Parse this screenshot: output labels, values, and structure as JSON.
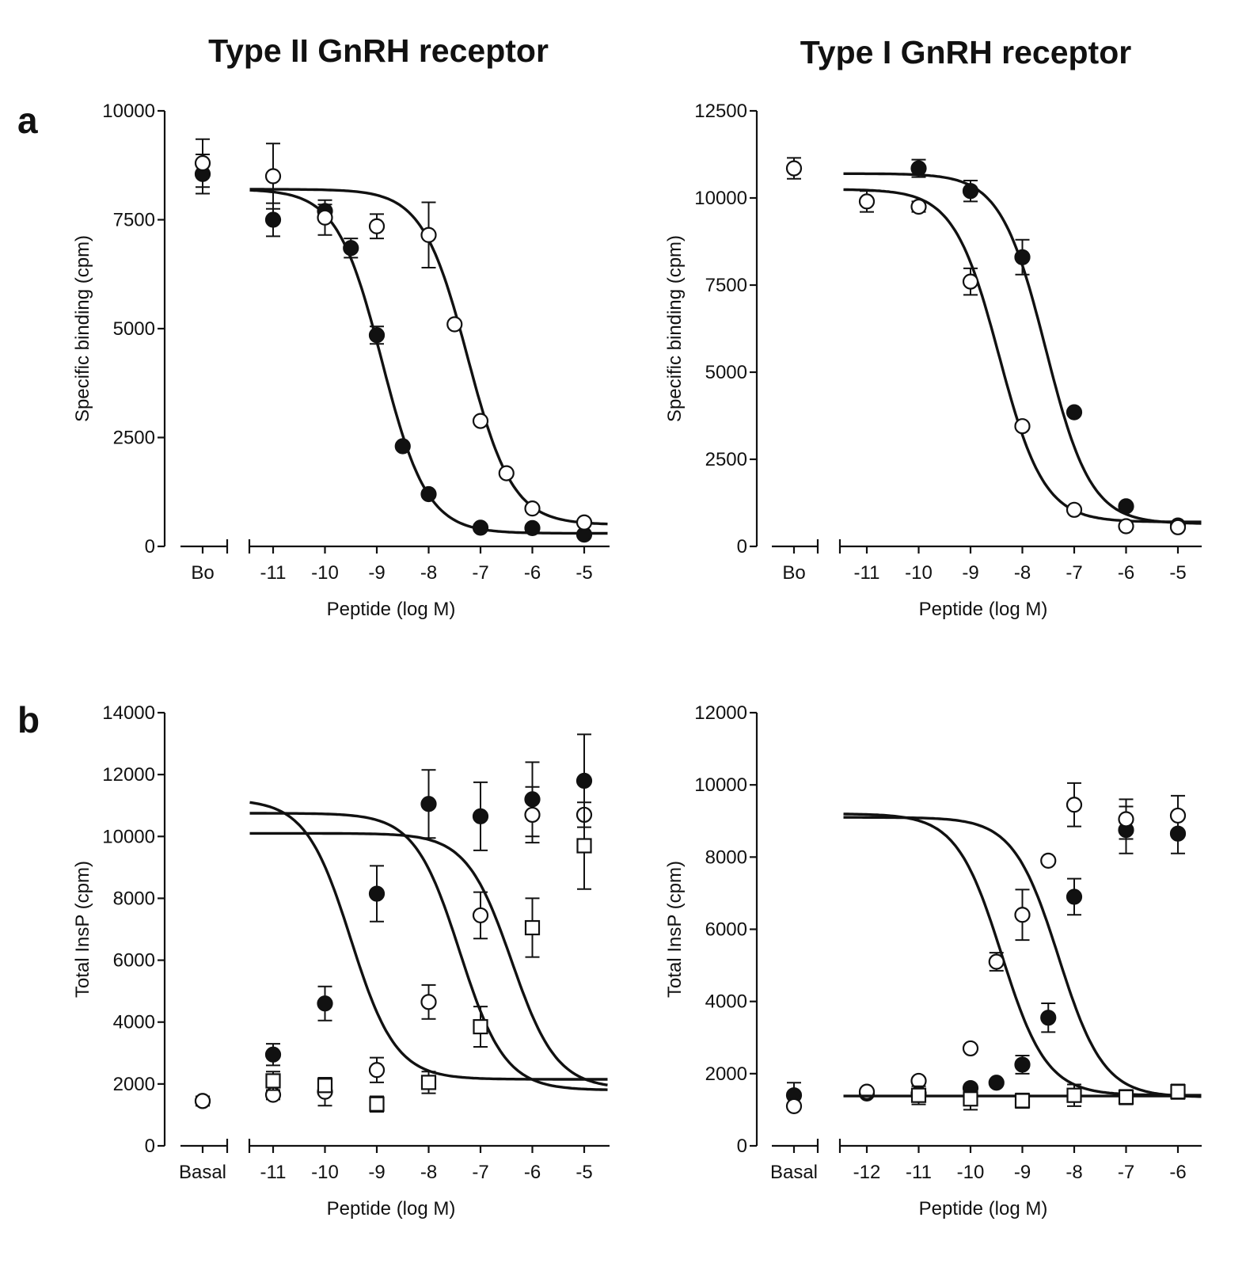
{
  "figure": {
    "column_titles": [
      "Type II GnRH receptor",
      "Type I GnRH receptor"
    ],
    "panel_labels": [
      "a",
      "b"
    ]
  },
  "colors": {
    "ink": "#111111",
    "background": "#ffffff"
  },
  "chart_data": [
    {
      "id": "a-typeII",
      "type": "scatter",
      "title": "Type II GnRH receptor",
      "panel": "a",
      "xlabel": "Peptide (log M)",
      "ylabel": "Specific binding (cpm)",
      "ylim": [
        0,
        10000
      ],
      "yticks": [
        0,
        2500,
        5000,
        7500,
        10000
      ],
      "ytick_labels": [
        "0",
        "2500",
        "5000",
        "7500",
        "10000"
      ],
      "xlim": [
        -11.5,
        -4.5
      ],
      "xticks": [
        -11,
        -10,
        -9,
        -8,
        -7,
        -6,
        -5
      ],
      "xtick_labels": [
        "-11",
        "-10",
        "-9",
        "-8",
        "-7",
        "-6",
        "-5"
      ],
      "baseline_label": "Bo",
      "series": [
        {
          "name": "filled-circle",
          "marker": "filled-circle",
          "baseline": {
            "y": 8550,
            "err": 450
          },
          "x": [
            -11,
            -10,
            -9.5,
            -9,
            -8.5,
            -8,
            -7,
            -6,
            -5
          ],
          "y": [
            7500,
            7700,
            6850,
            4850,
            2300,
            1200,
            430,
            420,
            270
          ],
          "err": [
            380,
            150,
            220,
            200,
            0,
            0,
            0,
            0,
            0
          ],
          "fit": {
            "top": 8200,
            "bottom": 300,
            "logEC50": -8.9,
            "hill": 1.0
          }
        },
        {
          "name": "open-circle",
          "marker": "open-circle",
          "baseline": {
            "y": 8800,
            "err": 550
          },
          "x": [
            -11,
            -10,
            -9,
            -8,
            -7.5,
            -7,
            -6.5,
            -6,
            -5
          ],
          "y": [
            8500,
            7550,
            7350,
            7150,
            5100,
            2880,
            1680,
            870,
            550
          ],
          "err": [
            750,
            400,
            280,
            750,
            0,
            0,
            0,
            0,
            0
          ],
          "fit": {
            "top": 8200,
            "bottom": 500,
            "logEC50": -7.25,
            "hill": 1.0
          }
        }
      ]
    },
    {
      "id": "a-typeI",
      "type": "scatter",
      "title": "Type I GnRH receptor",
      "panel": "a",
      "xlabel": "Peptide (log M)",
      "ylabel": "Specific binding (cpm)",
      "ylim": [
        0,
        12500
      ],
      "yticks": [
        0,
        2500,
        5000,
        7500,
        10000,
        12500
      ],
      "ytick_labels": [
        "0",
        "2500",
        "5000",
        "7500",
        "10000",
        "12500"
      ],
      "xlim": [
        -11.5,
        -4.5
      ],
      "xticks": [
        -11,
        -10,
        -9,
        -8,
        -7,
        -6,
        -5
      ],
      "xtick_labels": [
        "-11",
        "-10",
        "-9",
        "-8",
        "-7",
        "-6",
        "-5"
      ],
      "baseline_label": "Bo",
      "series": [
        {
          "name": "filled-circle",
          "marker": "filled-circle",
          "baseline": null,
          "x": [
            -10,
            -9,
            -8,
            -7,
            -6,
            -5
          ],
          "y": [
            10850,
            10200,
            8300,
            3850,
            1150,
            600
          ],
          "err": [
            250,
            300,
            500,
            0,
            0,
            0
          ],
          "fit": {
            "top": 10700,
            "bottom": 650,
            "logEC50": -7.55,
            "hill": 1.0
          }
        },
        {
          "name": "open-circle",
          "marker": "open-circle",
          "baseline": {
            "y": 10850,
            "err": 300
          },
          "x": [
            -11,
            -10,
            -9,
            -8,
            -7,
            -6,
            -5
          ],
          "y": [
            9900,
            9750,
            7600,
            3450,
            1050,
            580,
            550
          ],
          "err": [
            300,
            150,
            380,
            0,
            0,
            0,
            0
          ],
          "fit": {
            "top": 10250,
            "bottom": 700,
            "logEC50": -8.45,
            "hill": 1.0
          }
        }
      ]
    },
    {
      "id": "b-typeII",
      "type": "scatter",
      "title": "Type II GnRH receptor",
      "panel": "b",
      "xlabel": "Peptide (log M)",
      "ylabel": "Total InsP (cpm)",
      "ylim": [
        0,
        14000
      ],
      "yticks": [
        0,
        2000,
        4000,
        6000,
        8000,
        10000,
        12000,
        14000
      ],
      "ytick_labels": [
        "0",
        "2000",
        "4000",
        "6000",
        "8000",
        "10000",
        "12000",
        "14000"
      ],
      "xlim": [
        -11.5,
        -4.5
      ],
      "xticks": [
        -11,
        -10,
        -9,
        -8,
        -7,
        -6,
        -5
      ],
      "xtick_labels": [
        "-11",
        "-10",
        "-9",
        "-8",
        "-7",
        "-6",
        "-5"
      ],
      "baseline_label": "Basal",
      "series": [
        {
          "name": "filled-circle",
          "marker": "filled-circle",
          "baseline": {
            "y": 1450,
            "err": 150
          },
          "x": [
            -11,
            -10,
            -9,
            -8,
            -7,
            -6,
            -5
          ],
          "y": [
            2950,
            4600,
            8150,
            11050,
            10650,
            11200,
            11800
          ],
          "err": [
            350,
            550,
            900,
            1100,
            1100,
            1200,
            1500
          ],
          "fit": {
            "top": 11200,
            "bottom": 2150,
            "logEC50": -9.5,
            "hill": 1.0
          }
        },
        {
          "name": "open-circle",
          "marker": "open-circle",
          "baseline": {
            "y": 1450,
            "err": 150
          },
          "x": [
            -11,
            -10,
            -9,
            -8,
            -7,
            -6,
            -5
          ],
          "y": [
            1650,
            1750,
            2450,
            4650,
            7450,
            10700,
            10700
          ],
          "err": [
            150,
            450,
            400,
            550,
            750,
            900,
            0
          ],
          "fit": {
            "top": 10750,
            "bottom": 1800,
            "logEC50": -7.4,
            "hill": 1.0
          }
        },
        {
          "name": "open-square",
          "marker": "open-square",
          "baseline": null,
          "x": [
            -11,
            -10,
            -9,
            -8,
            -7,
            -6,
            -5
          ],
          "y": [
            2100,
            1950,
            1350,
            2050,
            3850,
            7050,
            9700
          ],
          "err": [
            300,
            200,
            250,
            350,
            650,
            950,
            1400
          ],
          "fit": {
            "top": 10100,
            "bottom": 1850,
            "logEC50": -6.4,
            "hill": 1.0
          }
        }
      ]
    },
    {
      "id": "b-typeI",
      "type": "scatter",
      "title": "Type I GnRH receptor",
      "panel": "b",
      "xlabel": "Peptide (log M)",
      "ylabel": "Total InsP (cpm)",
      "ylim": [
        0,
        12000
      ],
      "yticks": [
        0,
        2000,
        4000,
        6000,
        8000,
        10000,
        12000
      ],
      "ytick_labels": [
        "0",
        "2000",
        "4000",
        "6000",
        "8000",
        "10000",
        "12000"
      ],
      "xlim": [
        -12.5,
        -5.5
      ],
      "xticks": [
        -12,
        -11,
        -10,
        -9,
        -8,
        -7,
        -6
      ],
      "xtick_labels": [
        "-12",
        "-11",
        "-10",
        "-9",
        "-8",
        "-7",
        "-6"
      ],
      "baseline_label": "Basal",
      "series": [
        {
          "name": "filled-circle",
          "marker": "filled-circle",
          "baseline": {
            "y": 1400,
            "err": 350
          },
          "x": [
            -12,
            -11,
            -10,
            -9.5,
            -9,
            -8.5,
            -8,
            -7,
            -6
          ],
          "y": [
            1450,
            1450,
            1600,
            1750,
            2250,
            3550,
            6900,
            8750,
            8650
          ],
          "err": [
            0,
            0,
            0,
            0,
            250,
            400,
            500,
            650,
            550
          ],
          "fit": {
            "top": 9100,
            "bottom": 1350,
            "logEC50": -8.3,
            "hill": 1.0
          }
        },
        {
          "name": "open-circle",
          "marker": "open-circle",
          "baseline": {
            "y": 1100,
            "err": 0
          },
          "x": [
            -12,
            -11,
            -10,
            -9.5,
            -9,
            -8.5,
            -8,
            -7,
            -6
          ],
          "y": [
            1500,
            1800,
            2700,
            5100,
            6400,
            7900,
            9450,
            9050,
            9150
          ],
          "err": [
            0,
            0,
            0,
            250,
            700,
            0,
            600,
            550,
            550
          ],
          "fit": {
            "top": 9200,
            "bottom": 1400,
            "logEC50": -9.4,
            "hill": 1.0
          }
        },
        {
          "name": "open-square",
          "marker": "open-square",
          "baseline": null,
          "x": [
            -11,
            -10,
            -9,
            -8,
            -7,
            -6
          ],
          "y": [
            1400,
            1300,
            1250,
            1400,
            1350,
            1500
          ],
          "err": [
            250,
            300,
            200,
            300,
            200,
            200
          ],
          "fit": {
            "type": "flat",
            "y": 1380
          }
        }
      ]
    }
  ]
}
